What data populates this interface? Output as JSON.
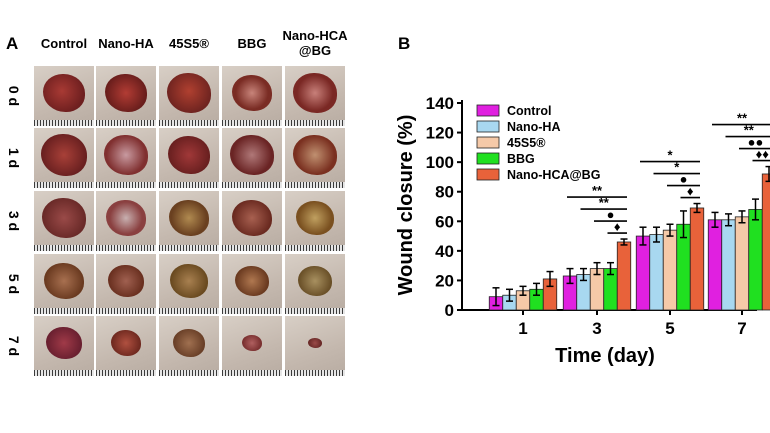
{
  "panel_a": {
    "letter": "A",
    "columns": [
      "Control",
      "Nano-HA",
      "45S5®",
      "BBG",
      "Nano-HCA\n@BG"
    ],
    "rows": [
      "0 d",
      "1 d",
      "3 d",
      "5 d",
      "7 d"
    ]
  },
  "panel_b": {
    "letter": "B"
  },
  "chart_data": {
    "type": "bar",
    "xlabel": "Time (day)",
    "ylabel": "Wound closure (%)",
    "categories": [
      "1",
      "3",
      "5",
      "7"
    ],
    "ylim": [
      0,
      140
    ],
    "yticks": [
      0,
      20,
      40,
      60,
      80,
      100,
      120,
      140
    ],
    "legend_position": "top-left",
    "series": [
      {
        "name": "Control",
        "color": "#e020e0",
        "values": [
          9,
          23,
          50,
          61
        ],
        "errors": [
          6,
          5,
          6,
          5
        ]
      },
      {
        "name": "Nano-HA",
        "color": "#a8d8f0",
        "values": [
          10,
          24,
          51,
          61
        ],
        "errors": [
          4,
          4,
          5,
          4
        ]
      },
      {
        "name": "45S5®",
        "color": "#f5c9a8",
        "values": [
          13,
          28,
          54,
          63
        ],
        "errors": [
          3,
          4,
          4,
          4
        ]
      },
      {
        "name": "BBG",
        "color": "#20e020",
        "values": [
          14,
          28,
          58,
          68
        ],
        "errors": [
          4,
          4,
          9,
          7
        ]
      },
      {
        "name": "Nano-HCA@BG",
        "color": "#e8623a",
        "values": [
          21,
          46,
          69,
          92
        ],
        "errors": [
          5,
          2,
          3,
          5
        ]
      }
    ],
    "significance": [
      {
        "group": "3",
        "marks": [
          "**",
          "**",
          "●",
          "♦"
        ]
      },
      {
        "group": "5",
        "marks": [
          "*",
          "*",
          "●",
          "♦"
        ]
      },
      {
        "group": "7",
        "marks": [
          "**",
          "**",
          "●●",
          "♦♦"
        ]
      }
    ]
  }
}
